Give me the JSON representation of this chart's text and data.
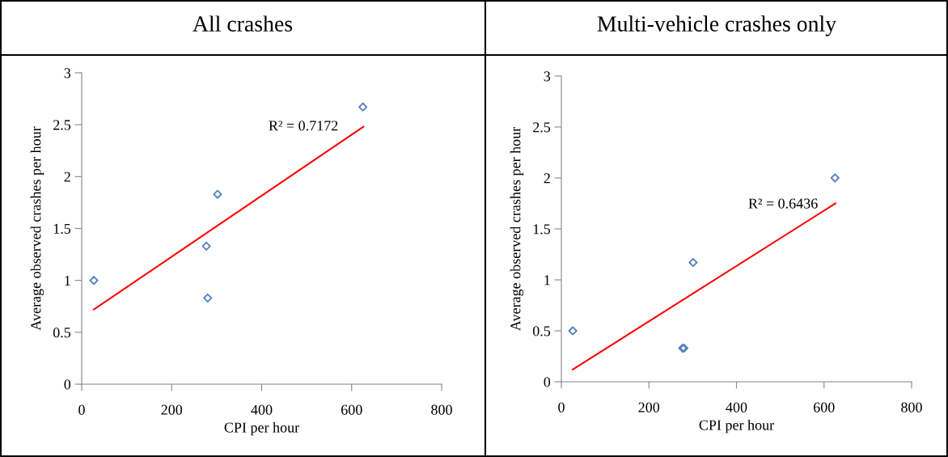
{
  "chart_data": [
    {
      "type": "scatter",
      "title": "All crashes",
      "xlabel": "CPI per hour",
      "ylabel": "Average observed crashes per hour",
      "grid": false,
      "legend": false,
      "series": [
        {
          "color": "#4f81bd",
          "marker": "diamond",
          "x": [
            27,
            277,
            280,
            302,
            625
          ],
          "values": [
            1.0,
            1.33,
            0.83,
            1.83,
            2.67
          ]
        },
        {
          "type": "line",
          "color": "#ff0000",
          "x": [
            27,
            626
          ],
          "values": [
            0.72,
            2.48
          ]
        }
      ],
      "annotations": [
        "R² = 0.7172"
      ],
      "xlim": [
        0,
        800
      ],
      "xticks": [
        0,
        200,
        400,
        600,
        800
      ],
      "ylim": [
        0,
        3
      ],
      "yticks": [
        0,
        0.5,
        1,
        1.5,
        2,
        2.5,
        3
      ]
    },
    {
      "type": "scatter",
      "title": "Multi-vehicle crashes only",
      "xlabel": "CPI per hour",
      "ylabel": "Average observed crashes per hour",
      "grid": false,
      "legend": false,
      "series": [
        {
          "color": "#4f81bd",
          "marker": "diamond",
          "x": [
            26,
            277,
            280,
            301,
            625
          ],
          "values": [
            0.5,
            0.33,
            0.33,
            1.17,
            2.0
          ]
        },
        {
          "type": "line",
          "color": "#ff0000",
          "x": [
            26,
            626
          ],
          "values": [
            0.12,
            1.75
          ]
        }
      ],
      "annotations": [
        "R² = 0.6436"
      ],
      "xlim": [
        0,
        800
      ],
      "xticks": [
        0,
        200,
        400,
        600,
        800
      ],
      "ylim": [
        0,
        3
      ],
      "yticks": [
        0,
        0.5,
        1,
        1.5,
        2,
        2.5,
        3
      ]
    }
  ]
}
